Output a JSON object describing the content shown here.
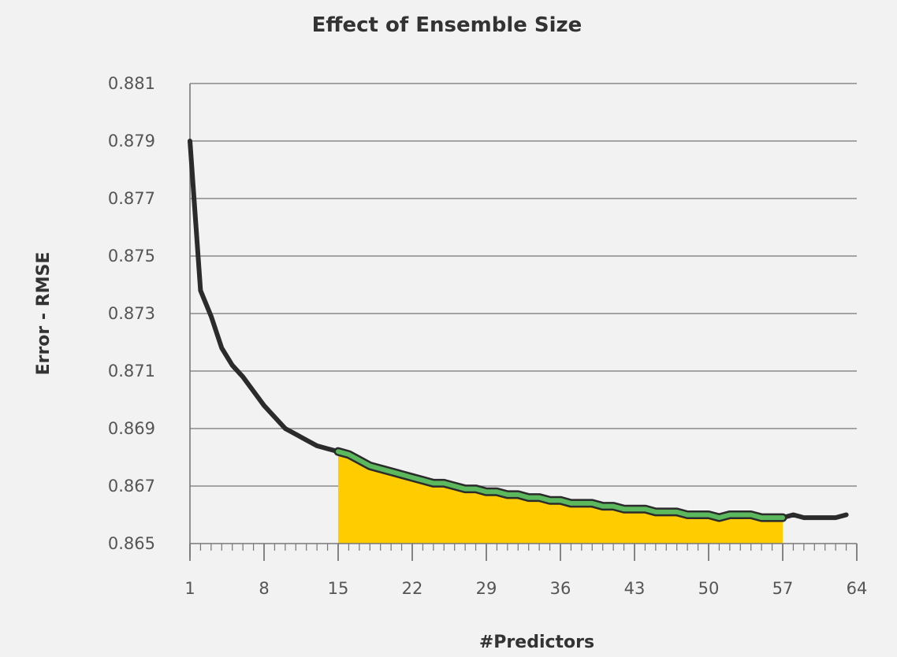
{
  "chart_data": {
    "type": "line",
    "title": "Effect of Ensemble Size",
    "xlabel": "#Predictors",
    "ylabel": "Error - RMSE",
    "xlim": [
      1,
      64
    ],
    "ylim": [
      0.865,
      0.881
    ],
    "x_ticks": [
      "1",
      "8",
      "15",
      "22",
      "29",
      "36",
      "43",
      "50",
      "57",
      "64"
    ],
    "y_ticks": [
      "0.881",
      "0.879",
      "0.877",
      "0.875",
      "0.873",
      "0.871",
      "0.869",
      "0.867",
      "0.865"
    ],
    "grid": "horizontal",
    "series": [
      {
        "color": "#2b2b2b",
        "x": [
          1,
          2,
          3,
          4,
          5,
          6,
          7,
          8,
          9,
          10,
          11,
          12,
          13,
          14,
          15,
          16,
          17,
          18,
          19,
          20,
          21,
          22,
          23,
          24,
          25,
          26,
          27,
          28,
          29,
          30,
          31,
          32,
          33,
          34,
          35,
          36,
          37,
          38,
          39,
          40,
          41,
          42,
          43,
          44,
          45,
          46,
          47,
          48,
          49,
          50,
          51,
          52,
          53,
          54,
          55,
          56,
          57,
          58,
          59,
          60,
          61,
          62,
          63
        ],
        "y": [
          0.879,
          0.8738,
          0.8729,
          0.8718,
          0.8712,
          0.8708,
          0.8703,
          0.8698,
          0.8694,
          0.869,
          0.8688,
          0.8686,
          0.8684,
          0.8683,
          0.8682,
          0.8681,
          0.8679,
          0.8677,
          0.8676,
          0.8675,
          0.8674,
          0.8673,
          0.8672,
          0.8671,
          0.8671,
          0.867,
          0.8669,
          0.8669,
          0.8668,
          0.8668,
          0.8667,
          0.8667,
          0.8666,
          0.8666,
          0.8665,
          0.8665,
          0.8664,
          0.8664,
          0.8664,
          0.8663,
          0.8663,
          0.8662,
          0.8662,
          0.8662,
          0.8661,
          0.8661,
          0.8661,
          0.866,
          0.866,
          0.866,
          0.8659,
          0.866,
          0.866,
          0.866,
          0.8659,
          0.8659,
          0.8659,
          0.866,
          0.8659,
          0.8659,
          0.8659,
          0.8659,
          0.866
        ]
      }
    ],
    "highlight": {
      "x_range": [
        15,
        57
      ],
      "fill_color": "#ffcc00",
      "line_color": "#5cb85c"
    }
  }
}
